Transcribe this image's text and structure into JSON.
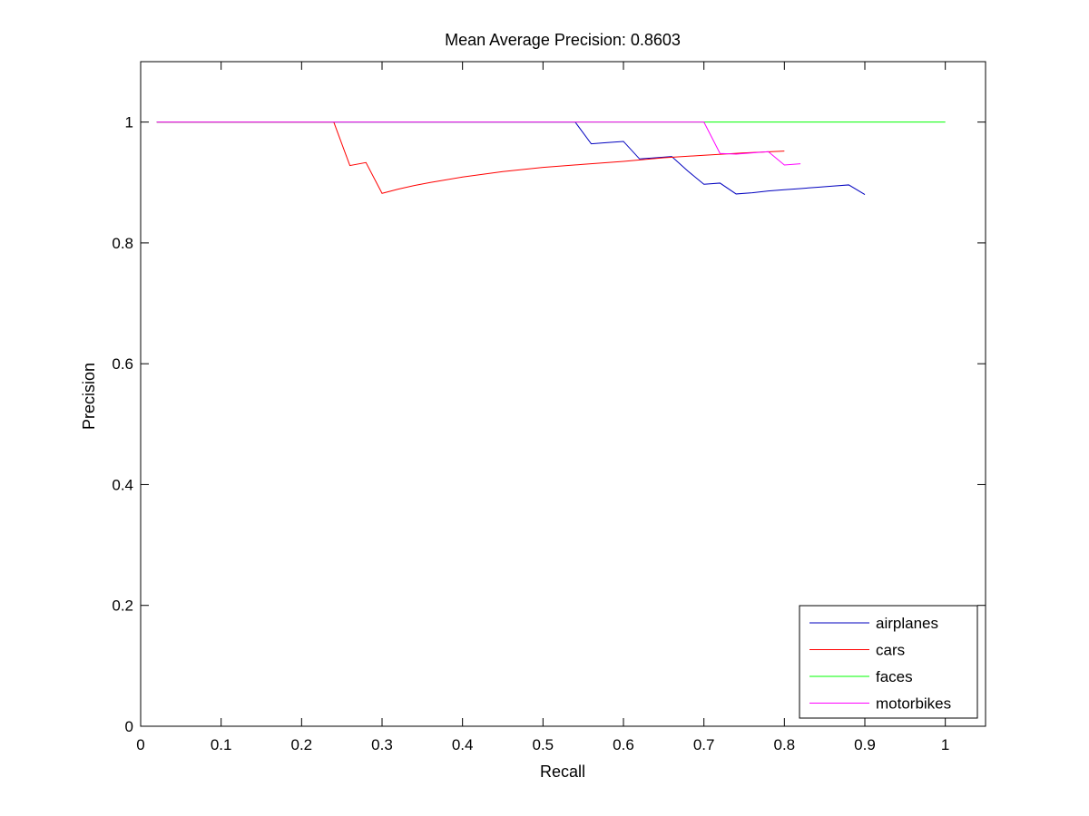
{
  "chart_data": {
    "type": "line",
    "title": "Mean Average Precision: 0.8603",
    "xlabel": "Recall",
    "ylabel": "Precision",
    "xlim": [
      0,
      1.05
    ],
    "ylim": [
      0,
      1.1
    ],
    "xticks": [
      0,
      0.1,
      0.2,
      0.3,
      0.4,
      0.5,
      0.6,
      0.7,
      0.8,
      0.9,
      1
    ],
    "xtick_labels": [
      "0",
      "0.1",
      "0.2",
      "0.3",
      "0.4",
      "0.5",
      "0.6",
      "0.7",
      "0.8",
      "0.9",
      "1"
    ],
    "yticks": [
      0,
      0.2,
      0.4,
      0.6,
      0.8,
      1
    ],
    "ytick_labels": [
      "0",
      "0.2",
      "0.4",
      "0.6",
      "0.8",
      "1"
    ],
    "grid": false,
    "legend_position": "bottom-right",
    "series": [
      {
        "name": "airplanes",
        "color": "#0000bf",
        "x": [
          0.02,
          0.54,
          0.56,
          0.58,
          0.6,
          0.62,
          0.64,
          0.66,
          0.68,
          0.7,
          0.72,
          0.74,
          0.76,
          0.78,
          0.8,
          0.82,
          0.84,
          0.86,
          0.88,
          0.9
        ],
        "y": [
          1.0,
          1.0,
          0.964,
          0.966,
          0.968,
          0.939,
          0.941,
          0.943,
          0.919,
          0.897,
          0.899,
          0.881,
          0.883,
          0.886,
          0.888,
          0.89,
          0.892,
          0.894,
          0.896,
          0.88
        ]
      },
      {
        "name": "cars",
        "color": "#ff0000",
        "x": [
          0.02,
          0.24,
          0.26,
          0.28,
          0.3,
          0.32,
          0.34,
          0.36,
          0.4,
          0.45,
          0.5,
          0.55,
          0.6,
          0.65,
          0.7,
          0.75,
          0.8
        ],
        "y": [
          1.0,
          1.0,
          0.928,
          0.933,
          0.882,
          0.889,
          0.895,
          0.9,
          0.909,
          0.918,
          0.925,
          0.93,
          0.935,
          0.941,
          0.945,
          0.949,
          0.952
        ]
      },
      {
        "name": "faces",
        "color": "#00ff00",
        "x": [
          0.02,
          1.0
        ],
        "y": [
          1.0,
          1.0
        ]
      },
      {
        "name": "motorbikes",
        "color": "#ff00ff",
        "x": [
          0.02,
          0.7,
          0.72,
          0.74,
          0.76,
          0.78,
          0.8,
          0.82
        ],
        "y": [
          1.0,
          1.0,
          0.948,
          0.947,
          0.949,
          0.951,
          0.929,
          0.931
        ]
      }
    ]
  }
}
